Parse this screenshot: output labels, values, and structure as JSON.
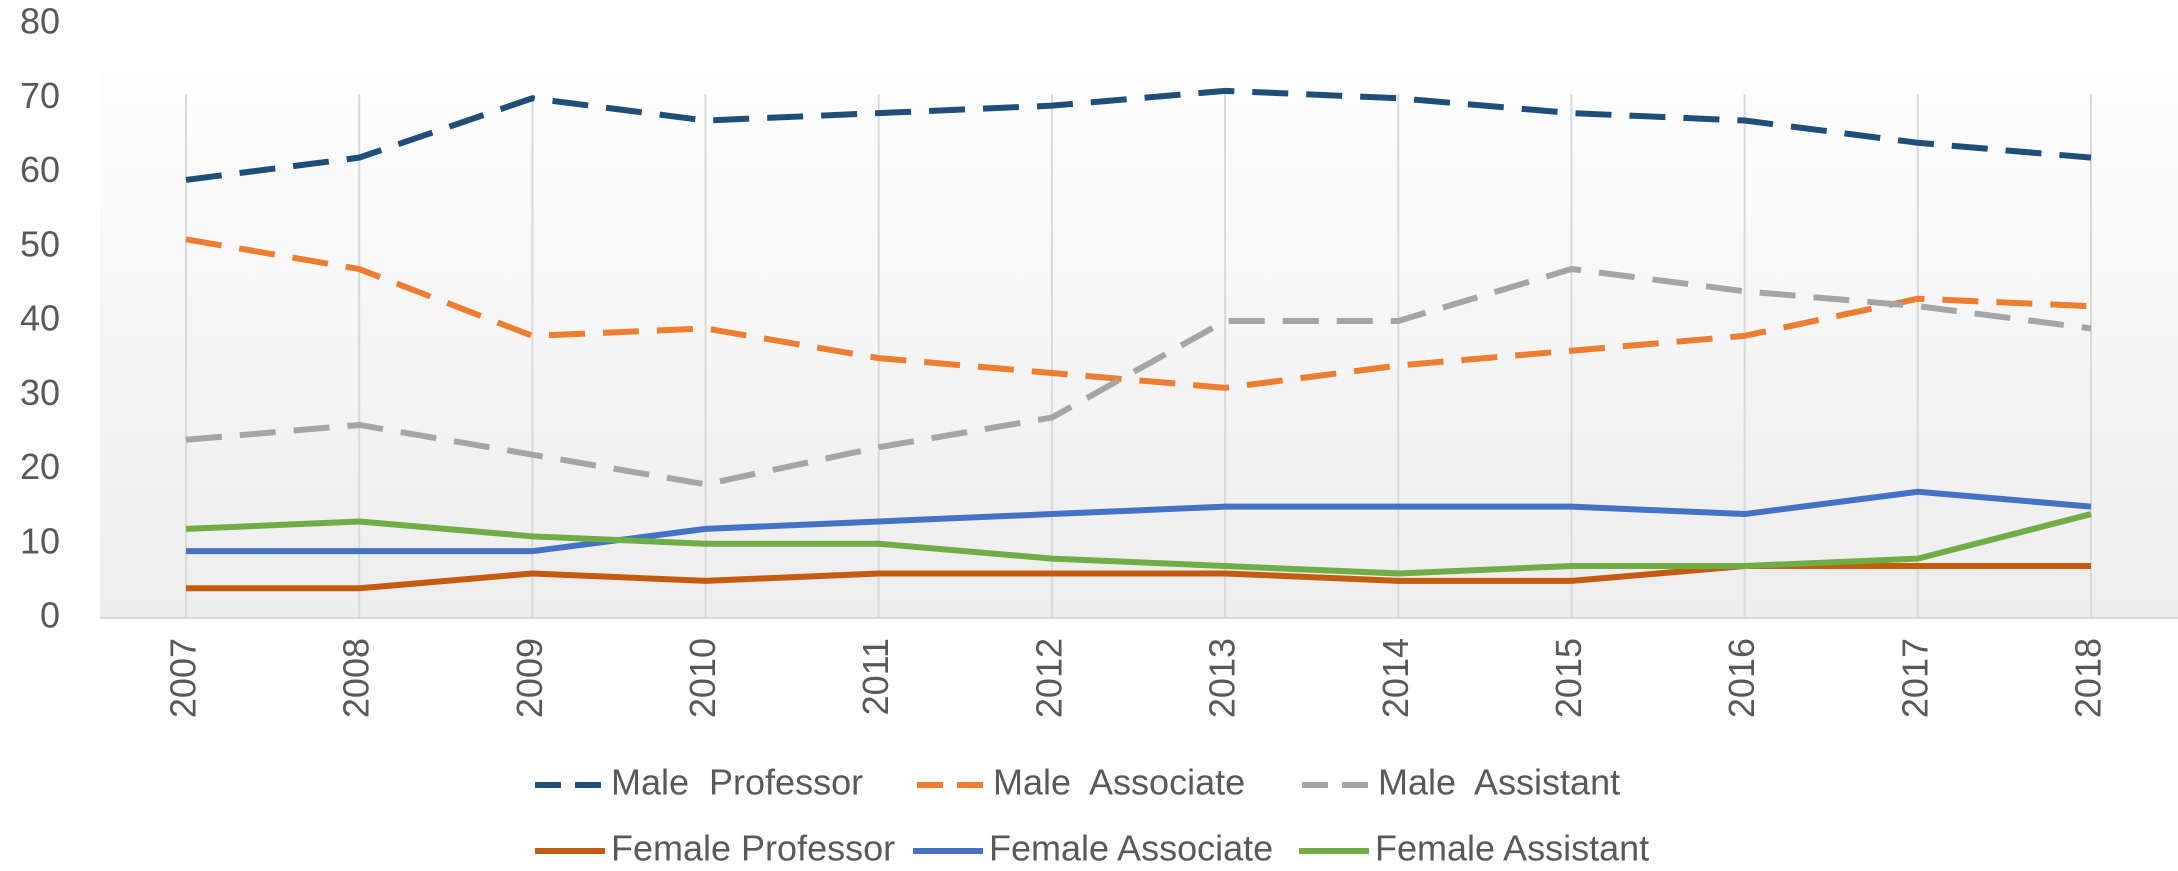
{
  "chart_data": {
    "type": "line",
    "categories": [
      "2007",
      "2008",
      "2009",
      "2010",
      "2011",
      "2012",
      "2013",
      "2014",
      "2015",
      "2016",
      "2017",
      "2018"
    ],
    "ylim": [
      0,
      80
    ],
    "yticks": [
      0,
      10,
      20,
      30,
      40,
      50,
      60,
      70,
      80
    ],
    "grid": "vertical",
    "series": [
      {
        "name": "Male  Professor",
        "color": "#1f4e79",
        "dashed": true,
        "values": [
          59,
          62,
          70,
          67,
          68,
          69,
          71,
          70,
          68,
          67,
          64,
          62
        ]
      },
      {
        "name": "Male  Associate",
        "color": "#ed7d31",
        "dashed": true,
        "values": [
          51,
          47,
          38,
          39,
          35,
          33,
          31,
          34,
          36,
          38,
          43,
          42
        ]
      },
      {
        "name": "Male  Assistant",
        "color": "#a5a5a5",
        "dashed": true,
        "values": [
          24,
          26,
          22,
          18,
          23,
          27,
          40,
          40,
          47,
          44,
          42,
          39
        ]
      },
      {
        "name": "Female Professor",
        "color": "#c55a11",
        "dashed": false,
        "values": [
          4,
          4,
          6,
          5,
          6,
          6,
          6,
          5,
          5,
          7,
          7,
          7
        ]
      },
      {
        "name": "Female Associate",
        "color": "#4472c4",
        "dashed": false,
        "values": [
          9,
          9,
          9,
          12,
          13,
          14,
          15,
          15,
          15,
          14,
          17,
          15
        ]
      },
      {
        "name": "Female Assistant",
        "color": "#70ad47",
        "dashed": false,
        "values": [
          12,
          13,
          11,
          10,
          10,
          8,
          7,
          6,
          7,
          7,
          8,
          14
        ]
      }
    ]
  }
}
